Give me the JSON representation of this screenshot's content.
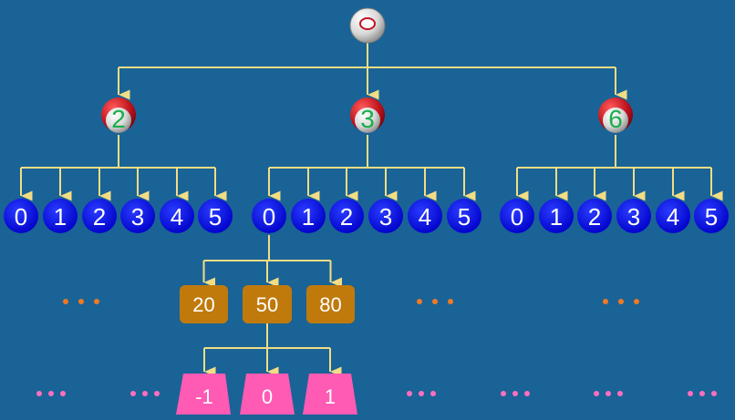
{
  "colors": {
    "background": "#1a6396",
    "connector": "#f2dd84",
    "digit_circle": "#0000e6",
    "value_box": "#c07a0c",
    "trapezoid": "#ff5ab4",
    "ellipsis_orange": "#f07a24",
    "ellipsis_pink": "#ff6fc0",
    "ball_number": "#18b04a",
    "ball_cap": "#c0141e"
  },
  "icons": {
    "root": "white-ball-icon",
    "level1": "red-white-ball-icon"
  },
  "root": {
    "label": ""
  },
  "level1": [
    {
      "label": "2",
      "children": [
        "0",
        "1",
        "2",
        "3",
        "4",
        "5"
      ]
    },
    {
      "label": "3",
      "children": [
        "0",
        "1",
        "2",
        "3",
        "4",
        "5"
      ]
    },
    {
      "label": "6",
      "children": [
        "0",
        "1",
        "2",
        "3",
        "4",
        "5"
      ]
    }
  ],
  "level3": {
    "parent_label": "0",
    "items": [
      "20",
      "50",
      "80"
    ]
  },
  "level4": {
    "parent_label": "50",
    "items": [
      "-1",
      "0",
      "1"
    ]
  },
  "ellipsis": "• • •"
}
